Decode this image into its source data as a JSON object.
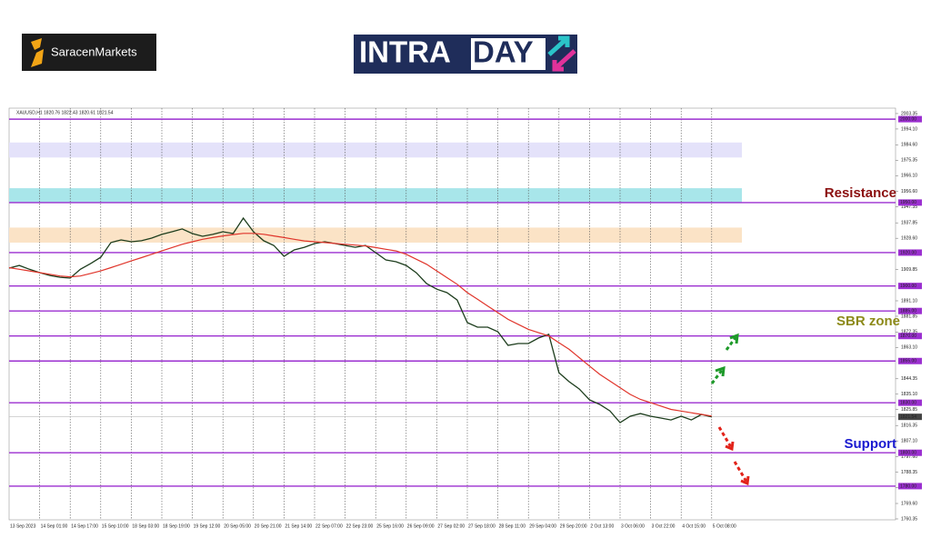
{
  "logos": {
    "brand": "SaracenMarkets",
    "intra": "INTRA",
    "day": "DAY"
  },
  "chart_data": {
    "type": "line",
    "header": "XAUUSD,H1  1820.76 1822.43 1820.61 1821.54",
    "categories": [
      "13 Sep 2023",
      null,
      null,
      "14 Sep 01:00",
      null,
      null,
      "14 Sep 17:00",
      null,
      null,
      "15 Sep 10:00",
      null,
      null,
      "18 Sep 03:00",
      null,
      null,
      "18 Sep 19:00",
      null,
      null,
      "19 Sep 12:00",
      null,
      null,
      "20 Sep 05:00",
      null,
      null,
      "20 Sep 21:00",
      null,
      null,
      "21 Sep 14:00",
      null,
      null,
      "22 Sep 07:00",
      null,
      null,
      "22 Sep 23:00",
      null,
      null,
      "25 Sep 16:00",
      null,
      null,
      "26 Sep 09:00",
      null,
      null,
      "27 Sep 02:00",
      null,
      null,
      "27 Sep 18:00",
      null,
      null,
      "28 Sep 11:00",
      null,
      null,
      "29 Sep 04:00",
      null,
      null,
      "29 Sep 20:00",
      null,
      null,
      "2 Oct 13:00",
      null,
      null,
      "3 Oct 06:00",
      null,
      null,
      "3 Oct 22:00",
      null,
      null,
      "4 Oct 15:00",
      null,
      null,
      "5 Oct 08:00"
    ],
    "series": [
      {
        "color": "#1d3d1d",
        "values": [
          1910.7,
          1912.3,
          1910,
          1908,
          1906.3,
          1905.2,
          1904.7,
          1910,
          1913.4,
          1917.2,
          1926,
          1927.6,
          1926.5,
          1927.1,
          1928.7,
          1930.9,
          1932.5,
          1934.2,
          1931.4,
          1929.8,
          1930.9,
          1932.5,
          1931.4,
          1940.7,
          1932.5,
          1927.1,
          1924.3,
          1917.8,
          1921.6,
          1923.2,
          1925.4,
          1926.5,
          1925.4,
          1924.3,
          1923.2,
          1924.3,
          1920,
          1915.6,
          1914.5,
          1912.3,
          1907.9,
          1901.4,
          1898.1,
          1896,
          1891.6,
          1878,
          1875.3,
          1875.3,
          1872.6,
          1864.4,
          1865.5,
          1865.5,
          1868.8,
          1871,
          1848,
          1842.6,
          1838.2,
          1831.7,
          1829,
          1825.1,
          1818.1,
          1821.9,
          1823.5,
          1821.9,
          1820.8,
          1819.7,
          1821.9,
          1819.7,
          1823,
          1821.54
        ]
      },
      {
        "color": "#e0352b",
        "values": [
          1911,
          1910,
          1909,
          1908,
          1907,
          1906,
          1905.5,
          1906,
          1907.5,
          1909,
          1911,
          1913,
          1915,
          1917,
          1919,
          1921,
          1923,
          1925,
          1926.5,
          1928,
          1929,
          1930,
          1930.8,
          1931.5,
          1931.5,
          1931,
          1930,
          1929,
          1928,
          1927,
          1926.5,
          1926,
          1925.5,
          1925,
          1924.5,
          1924,
          1923,
          1922,
          1921,
          1919,
          1916,
          1913,
          1909,
          1905,
          1901,
          1896,
          1892,
          1888,
          1884,
          1880,
          1877,
          1874,
          1872,
          1870,
          1866,
          1862,
          1857,
          1852,
          1847,
          1843,
          1839,
          1835,
          1832,
          1830,
          1828,
          1826,
          1825,
          1824,
          1823,
          1822
        ]
      }
    ],
    "ylim": [
      1759.8,
      2006.6
    ],
    "yticks": [
      {
        "value": 2003.35,
        "label": "2003.35"
      },
      {
        "value": 1994.1,
        "label": "1994.10"
      },
      {
        "value": 1984.6,
        "label": "1984.60"
      },
      {
        "value": 1975.35,
        "label": "1975.35"
      },
      {
        "value": 1966.1,
        "label": "1966.10"
      },
      {
        "value": 1956.6,
        "label": "1956.60"
      },
      {
        "value": 1947.35,
        "label": "1947.35"
      },
      {
        "value": 1937.85,
        "label": "1937.85"
      },
      {
        "value": 1928.6,
        "label": "1928.60"
      },
      {
        "value": 1909.85,
        "label": "1909.85"
      },
      {
        "value": 1891.1,
        "label": "1891.10"
      },
      {
        "value": 1881.85,
        "label": "1881.85"
      },
      {
        "value": 1872.35,
        "label": "1872.35"
      },
      {
        "value": 1863.1,
        "label": "1863.10"
      },
      {
        "value": 1844.35,
        "label": "1844.35"
      },
      {
        "value": 1835.1,
        "label": "1835.10"
      },
      {
        "value": 1825.85,
        "label": "1825.85"
      },
      {
        "value": 1816.35,
        "label": "1816.35"
      },
      {
        "value": 1807.1,
        "label": "1807.10"
      },
      {
        "value": 1797.6,
        "label": "1797.60"
      },
      {
        "value": 1788.35,
        "label": "1788.35"
      },
      {
        "value": 1779.1,
        "label": "1779.10"
      },
      {
        "value": 1769.6,
        "label": "1769.60"
      },
      {
        "value": 1760.35,
        "label": "1760.35"
      }
    ],
    "grid": true,
    "levels": [
      {
        "value": 2000,
        "label": "2000.00"
      },
      {
        "value": 1950,
        "label": "1950.00"
      },
      {
        "value": 1920,
        "label": "1920.00"
      },
      {
        "value": 1900,
        "label": "1900.00"
      },
      {
        "value": 1885,
        "label": "1885.00"
      },
      {
        "value": 1870,
        "label": "1870.00"
      },
      {
        "value": 1855,
        "label": "1855.00"
      },
      {
        "value": 1830,
        "label": "1830.00"
      },
      {
        "value": 1800,
        "label": "1800.00"
      },
      {
        "value": 1780,
        "label": "1780.00"
      }
    ],
    "level_color": "#9b2fd0",
    "zones": [
      {
        "from": 1986,
        "to": 1977,
        "color": "#e4e2fa"
      },
      {
        "from": 1958.6,
        "to": 1950,
        "color": "#a8e6ea"
      },
      {
        "from": 1935,
        "to": 1926,
        "color": "#fbe3c6"
      }
    ],
    "current_price": {
      "value": 1821.54,
      "label": "1821.54"
    },
    "annotations": [
      {
        "text": "Resistance",
        "color": "#8b1010"
      },
      {
        "text": "SBR zone",
        "color": "#8d8a1a"
      },
      {
        "text": "Support",
        "color": "#1a1ad0"
      }
    ]
  }
}
